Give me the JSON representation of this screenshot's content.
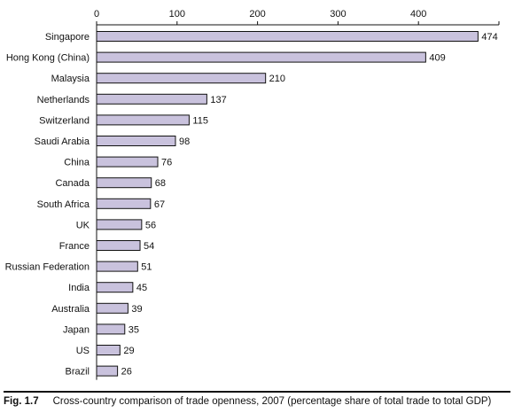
{
  "chart_data": {
    "type": "bar",
    "orientation": "horizontal",
    "categories": [
      "Singapore",
      "Hong Kong (China)",
      "Malaysia",
      "Netherlands",
      "Switzerland",
      "Saudi Arabia",
      "China",
      "Canada",
      "South Africa",
      "UK",
      "France",
      "Russian Federation",
      "India",
      "Australia",
      "Japan",
      "US",
      "Brazil"
    ],
    "values": [
      474,
      409,
      210,
      137,
      115,
      98,
      76,
      68,
      67,
      56,
      54,
      51,
      45,
      39,
      35,
      29,
      26
    ],
    "value_labels": [
      "474",
      "409",
      "210",
      "137",
      "115",
      "98",
      "76",
      "68",
      "67",
      "56",
      "54",
      "51",
      "45",
      "39",
      "35",
      "29",
      "26"
    ],
    "x_ticks": [
      "0",
      "100",
      "200",
      "300",
      "400"
    ],
    "xlim": [
      0,
      500
    ],
    "x_axis_position": "top",
    "grid": false,
    "bar_color": "#c9c2dd",
    "bar_edge_color": "#111111"
  },
  "caption": {
    "figure_number": "Fig. 1.7",
    "text": "Cross-country comparison of trade openness, 2007 (percentage share of total trade to total GDP)"
  }
}
